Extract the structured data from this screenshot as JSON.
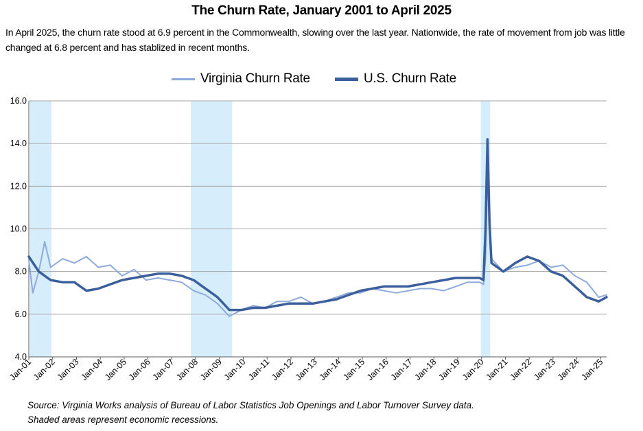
{
  "chart_data": {
    "type": "line",
    "title": "The Churn Rate, January 2001 to April 2025",
    "subtitle": "In April 2025, the churn rate stood at 6.9 percent in the Commonwealth, slowing over the last year. Nationwide, the rate of movement from job was little changed at 6.8 percent and has stablized in recent months.",
    "xlabel": "",
    "ylabel": "",
    "ylim": [
      4.0,
      16.0
    ],
    "yticks": [
      "4.0",
      "6.0",
      "8.0",
      "10.0",
      "12.0",
      "14.0",
      "16.0"
    ],
    "xticks": [
      "Jan-01",
      "Jan-02",
      "Jan-03",
      "Jan-04",
      "Jan-05",
      "Jan-06",
      "Jan-07",
      "Jan-08",
      "Jan-09",
      "Jan-10",
      "Jan-11",
      "Jan-12",
      "Jan-13",
      "Jan-14",
      "Jan-15",
      "Jan-16",
      "Jan-17",
      "Jan-18",
      "Jan-19",
      "Jan-20",
      "Jan-21",
      "Jan-22",
      "Jan-23",
      "Jan-24",
      "Jan-25"
    ],
    "grid": true,
    "legend_position": "top-center",
    "recessions": [
      [
        "2001-03",
        "2001-11"
      ],
      [
        "2007-12",
        "2009-06"
      ],
      [
        "2020-02",
        "2020-04"
      ]
    ],
    "series": [
      {
        "name": "Virginia Churn Rate",
        "color": "#8ea9db",
        "x_start": "2001-01",
        "x_end": "2025-04",
        "frequency": "monthly",
        "anchors": [
          [
            "2001-01",
            8.5
          ],
          [
            "2001-03",
            7.0
          ],
          [
            "2001-06",
            8.0
          ],
          [
            "2001-09",
            9.4
          ],
          [
            "2001-12",
            8.2
          ],
          [
            "2002-06",
            8.6
          ],
          [
            "2002-12",
            8.4
          ],
          [
            "2003-06",
            8.7
          ],
          [
            "2003-12",
            8.2
          ],
          [
            "2004-06",
            8.3
          ],
          [
            "2004-12",
            7.8
          ],
          [
            "2005-06",
            8.1
          ],
          [
            "2005-12",
            7.6
          ],
          [
            "2006-06",
            7.7
          ],
          [
            "2006-12",
            7.6
          ],
          [
            "2007-06",
            7.5
          ],
          [
            "2007-12",
            7.1
          ],
          [
            "2008-06",
            6.9
          ],
          [
            "2008-12",
            6.5
          ],
          [
            "2009-06",
            5.9
          ],
          [
            "2009-12",
            6.2
          ],
          [
            "2010-06",
            6.4
          ],
          [
            "2010-12",
            6.3
          ],
          [
            "2011-06",
            6.6
          ],
          [
            "2011-12",
            6.6
          ],
          [
            "2012-06",
            6.8
          ],
          [
            "2012-12",
            6.5
          ],
          [
            "2013-06",
            6.6
          ],
          [
            "2013-12",
            6.8
          ],
          [
            "2014-06",
            7.0
          ],
          [
            "2014-12",
            7.0
          ],
          [
            "2015-06",
            7.2
          ],
          [
            "2015-12",
            7.1
          ],
          [
            "2016-06",
            7.0
          ],
          [
            "2016-12",
            7.1
          ],
          [
            "2017-06",
            7.2
          ],
          [
            "2017-12",
            7.2
          ],
          [
            "2018-06",
            7.1
          ],
          [
            "2018-12",
            7.3
          ],
          [
            "2019-06",
            7.5
          ],
          [
            "2019-12",
            7.5
          ],
          [
            "2020-02",
            7.4
          ],
          [
            "2020-03",
            8.6
          ],
          [
            "2020-04",
            12.3
          ],
          [
            "2020-05",
            10.5
          ],
          [
            "2020-06",
            8.6
          ],
          [
            "2020-12",
            8.0
          ],
          [
            "2021-06",
            8.2
          ],
          [
            "2021-12",
            8.3
          ],
          [
            "2022-06",
            8.5
          ],
          [
            "2022-12",
            8.2
          ],
          [
            "2023-06",
            8.3
          ],
          [
            "2023-12",
            7.8
          ],
          [
            "2024-06",
            7.5
          ],
          [
            "2024-12",
            6.8
          ],
          [
            "2025-04",
            6.9
          ]
        ]
      },
      {
        "name": "U.S. Churn Rate",
        "color": "#3a5f9c",
        "x_start": "2001-01",
        "x_end": "2025-04",
        "frequency": "monthly",
        "anchors": [
          [
            "2001-01",
            8.7
          ],
          [
            "2001-06",
            8.0
          ],
          [
            "2001-12",
            7.6
          ],
          [
            "2002-06",
            7.5
          ],
          [
            "2002-12",
            7.5
          ],
          [
            "2003-06",
            7.1
          ],
          [
            "2003-12",
            7.2
          ],
          [
            "2004-06",
            7.4
          ],
          [
            "2004-12",
            7.6
          ],
          [
            "2005-06",
            7.7
          ],
          [
            "2005-12",
            7.8
          ],
          [
            "2006-06",
            7.9
          ],
          [
            "2006-12",
            7.9
          ],
          [
            "2007-06",
            7.8
          ],
          [
            "2007-12",
            7.6
          ],
          [
            "2008-06",
            7.2
          ],
          [
            "2008-12",
            6.8
          ],
          [
            "2009-06",
            6.2
          ],
          [
            "2009-12",
            6.2
          ],
          [
            "2010-06",
            6.3
          ],
          [
            "2010-12",
            6.3
          ],
          [
            "2011-06",
            6.4
          ],
          [
            "2011-12",
            6.5
          ],
          [
            "2012-06",
            6.5
          ],
          [
            "2012-12",
            6.5
          ],
          [
            "2013-06",
            6.6
          ],
          [
            "2013-12",
            6.7
          ],
          [
            "2014-06",
            6.9
          ],
          [
            "2014-12",
            7.1
          ],
          [
            "2015-06",
            7.2
          ],
          [
            "2015-12",
            7.3
          ],
          [
            "2016-06",
            7.3
          ],
          [
            "2016-12",
            7.3
          ],
          [
            "2017-06",
            7.4
          ],
          [
            "2017-12",
            7.5
          ],
          [
            "2018-06",
            7.6
          ],
          [
            "2018-12",
            7.7
          ],
          [
            "2019-06",
            7.7
          ],
          [
            "2019-12",
            7.7
          ],
          [
            "2020-02",
            7.6
          ],
          [
            "2020-03",
            10.0
          ],
          [
            "2020-04",
            14.2
          ],
          [
            "2020-05",
            10.3
          ],
          [
            "2020-06",
            8.4
          ],
          [
            "2020-12",
            8.0
          ],
          [
            "2021-06",
            8.4
          ],
          [
            "2021-12",
            8.7
          ],
          [
            "2022-06",
            8.5
          ],
          [
            "2022-12",
            8.0
          ],
          [
            "2023-06",
            7.8
          ],
          [
            "2023-12",
            7.3
          ],
          [
            "2024-06",
            6.8
          ],
          [
            "2024-12",
            6.6
          ],
          [
            "2025-04",
            6.8
          ]
        ]
      }
    ]
  },
  "footer": {
    "line1": "Source: Virginia Works analysis of Bureau of Labor Statistics Job Openings and Labor Turnover Survey data.",
    "line2": "Shaded areas represent economic recessions."
  }
}
